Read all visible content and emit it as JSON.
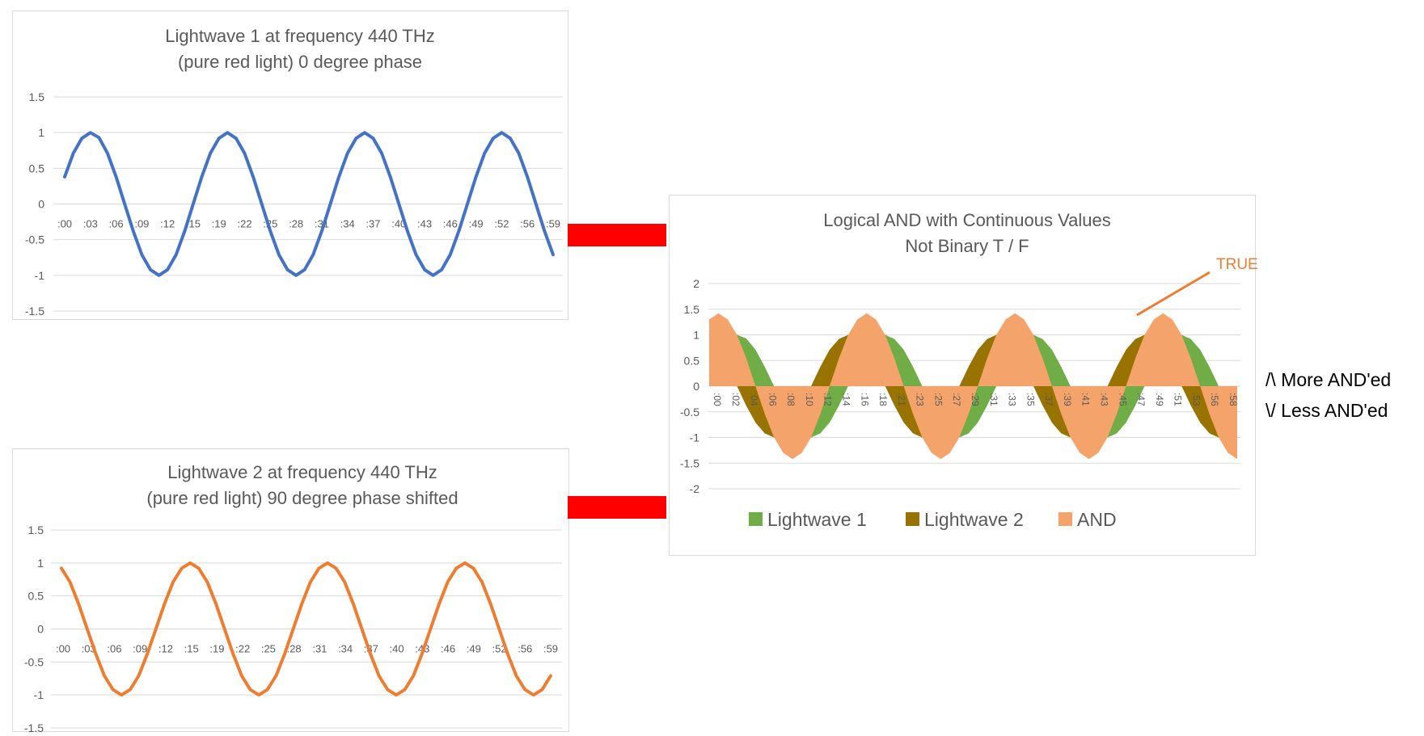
{
  "colors": {
    "wave1": "#4472c4",
    "wave2": "#ed7d31",
    "lightwave1_area": "#70ad47",
    "lightwave2_area": "#997300",
    "and_area": "#f4a46b",
    "connector": "#ff0000",
    "grid": "#d9d9d9",
    "axis_text": "#595959",
    "title_text": "#595959",
    "annotation": "#ed7d31"
  },
  "connectors": [
    "red-bar",
    "red-bar"
  ],
  "side_notes": {
    "more": "/\\ More AND'ed",
    "less": "\\/ Less AND'ed"
  },
  "chart_data": [
    {
      "type": "line",
      "title": "Lightwave 1 at frequency 440 THz",
      "subtitle": "(pure red light) 0 degree phase",
      "ylim": [
        -1.5,
        1.5
      ],
      "y_ticks": [
        "1.5",
        "1",
        "0.5",
        "0",
        "-0.5",
        "-1",
        "-1.5"
      ],
      "x_tick_labels": [
        ":00",
        ":03",
        ":06",
        ":09",
        ":12",
        ":15",
        ":19",
        ":22",
        ":25",
        ":28",
        ":31",
        ":34",
        ":37",
        ":40",
        ":43",
        ":46",
        ":49",
        ":52",
        ":56",
        ":59"
      ],
      "series": [
        {
          "values": [
            0.38,
            0.71,
            0.92,
            1.0,
            0.93,
            0.71,
            0.38,
            0.0,
            -0.38,
            -0.71,
            -0.92,
            -1.0,
            -0.92,
            -0.71,
            -0.38,
            0.0,
            0.38,
            0.71,
            0.92,
            1.0,
            0.92,
            0.71,
            0.38,
            0.0,
            -0.38,
            -0.71,
            -0.92,
            -1.0,
            -0.92,
            -0.71,
            -0.38,
            0.0,
            0.38,
            0.71,
            0.92,
            1.0,
            0.92,
            0.71,
            0.38,
            0.0,
            -0.38,
            -0.71,
            -0.92,
            -1.0,
            -0.92,
            -0.71,
            -0.38,
            0.0,
            0.38,
            0.71,
            0.92,
            1.0,
            0.92,
            0.71,
            0.38,
            0.0,
            -0.38,
            -0.71
          ]
        }
      ]
    },
    {
      "type": "line",
      "title": "Lightwave 2 at frequency 440 THz",
      "subtitle": "(pure red light) 90 degree phase shifted",
      "ylim": [
        -1.5,
        1.5
      ],
      "y_ticks": [
        "1.5",
        "1",
        "0.5",
        "0",
        "-0.5",
        "-1",
        "-1.5"
      ],
      "x_tick_labels": [
        ":00",
        ":03",
        ":06",
        ":09",
        ":12",
        ":15",
        ":19",
        ":22",
        ":25",
        ":28",
        ":31",
        ":34",
        ":37",
        ":40",
        ":43",
        ":46",
        ":49",
        ":52",
        ":56",
        ":59"
      ],
      "series": [
        {
          "values": [
            0.92,
            0.71,
            0.38,
            0.0,
            -0.38,
            -0.71,
            -0.92,
            -1.0,
            -0.92,
            -0.71,
            -0.38,
            0.0,
            0.38,
            0.71,
            0.92,
            1.0,
            0.92,
            0.71,
            0.38,
            0.0,
            -0.38,
            -0.71,
            -0.92,
            -1.0,
            -0.92,
            -0.71,
            -0.38,
            0.0,
            0.38,
            0.71,
            0.92,
            1.0,
            0.92,
            0.71,
            0.38,
            0.0,
            -0.38,
            -0.71,
            -0.92,
            -1.0,
            -0.92,
            -0.71,
            -0.38,
            0.0,
            0.38,
            0.71,
            0.92,
            1.0,
            0.92,
            0.71,
            0.38,
            0.0,
            -0.38,
            -0.71,
            -0.92,
            -1.0,
            -0.92,
            -0.71
          ]
        }
      ]
    },
    {
      "type": "area",
      "title": "Logical AND with Continuous Values",
      "subtitle": "Not Binary T / F",
      "ylim": [
        -2,
        2
      ],
      "y_ticks": [
        "2",
        "1.5",
        "1",
        "0.5",
        "0",
        "-0.5",
        "-1",
        "-1.5",
        "-2"
      ],
      "x_tick_labels": [
        ":00",
        ":02",
        ":04",
        ":06",
        ":08",
        ":10",
        ":12",
        ":14",
        ":16",
        ":18",
        ":21",
        ":23",
        ":25",
        ":27",
        ":29",
        ":31",
        ":33",
        ":35",
        ":37",
        ":39",
        ":41",
        ":43",
        ":45",
        ":47",
        ":49",
        ":51",
        ":53",
        ":56",
        ":58"
      ],
      "legend": [
        "Lightwave 1",
        "Lightwave 2",
        "AND"
      ],
      "legend_position": "bottom",
      "annotation": "TRUE",
      "series": [
        {
          "name": "Lightwave 1",
          "values": [
            0.38,
            0.71,
            0.92,
            1.0,
            0.93,
            0.71,
            0.38,
            0.0,
            -0.38,
            -0.71,
            -0.92,
            -1.0,
            -0.92,
            -0.71,
            -0.38,
            0.0,
            0.38,
            0.71,
            0.92,
            1.0,
            0.92,
            0.71,
            0.38,
            0.0,
            -0.38,
            -0.71,
            -0.92,
            -1.0,
            -0.92,
            -0.71,
            -0.38,
            0.0,
            0.38,
            0.71,
            0.92,
            1.0,
            0.92,
            0.71,
            0.38,
            0.0,
            -0.38,
            -0.71,
            -0.92,
            -1.0,
            -0.92,
            -0.71,
            -0.38,
            0.0,
            0.38,
            0.71,
            0.92,
            1.0,
            0.92,
            0.71,
            0.38,
            0.0,
            -0.38,
            -0.71
          ]
        },
        {
          "name": "Lightwave 2",
          "values": [
            0.92,
            0.71,
            0.38,
            0.0,
            -0.38,
            -0.71,
            -0.92,
            -1.0,
            -0.92,
            -0.71,
            -0.38,
            0.0,
            0.38,
            0.71,
            0.92,
            1.0,
            0.92,
            0.71,
            0.38,
            0.0,
            -0.38,
            -0.71,
            -0.92,
            -1.0,
            -0.92,
            -0.71,
            -0.38,
            0.0,
            0.38,
            0.71,
            0.92,
            1.0,
            0.92,
            0.71,
            0.38,
            0.0,
            -0.38,
            -0.71,
            -0.92,
            -1.0,
            -0.92,
            -0.71,
            -0.38,
            0.0,
            0.38,
            0.71,
            0.92,
            1.0,
            0.92,
            0.71,
            0.38,
            0.0,
            -0.38,
            -0.71,
            -0.92,
            -1.0,
            -0.92,
            -0.71
          ]
        },
        {
          "name": "AND",
          "values": [
            1.3,
            1.42,
            1.3,
            1.0,
            0.55,
            0.0,
            -0.54,
            -1.0,
            -1.3,
            -1.42,
            -1.3,
            -1.0,
            -0.54,
            0.0,
            0.54,
            1.0,
            1.3,
            1.42,
            1.3,
            1.0,
            0.54,
            0.0,
            -0.54,
            -1.0,
            -1.3,
            -1.42,
            -1.3,
            -1.0,
            -0.54,
            0.0,
            0.54,
            1.0,
            1.3,
            1.42,
            1.3,
            1.0,
            0.54,
            0.0,
            -0.54,
            -1.0,
            -1.3,
            -1.42,
            -1.3,
            -1.0,
            -0.54,
            0.0,
            0.54,
            1.0,
            1.3,
            1.42,
            1.3,
            1.0,
            0.54,
            0.0,
            -0.54,
            -1.0,
            -1.3,
            -1.42
          ]
        }
      ]
    }
  ]
}
